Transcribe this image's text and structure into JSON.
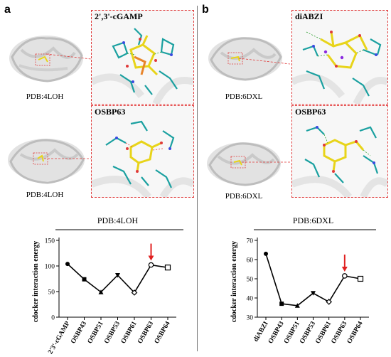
{
  "panels": {
    "a": {
      "letter": "a",
      "structures": [
        {
          "pdb_label": "PDB:4LOH",
          "inset_title": "2',3'-cGAMP"
        },
        {
          "pdb_label": "PDB:4LOH",
          "inset_title": "OSBP63"
        }
      ],
      "chart_title": "PDB:4LOH"
    },
    "b": {
      "letter": "b",
      "structures": [
        {
          "pdb_label": "PDB:6DXL",
          "inset_title": "diABZI"
        },
        {
          "pdb_label": "PDB:6DXL",
          "inset_title": "OSBP63"
        }
      ],
      "chart_title": "PDB:6DXL"
    }
  },
  "colors": {
    "inset_border": "#e03a3a",
    "arrow": "#e02020",
    "line": "#000000",
    "ligand": "#e8d41a",
    "residue": "#1aa0a0"
  },
  "chart_data": [
    {
      "type": "line",
      "title": "PDB:4LOH",
      "ylabel": "cdocker interaction energy",
      "categories": [
        "2'3'-cGAMP",
        "OSBP43",
        "OSBP51",
        "OSBP53",
        "OSBP61",
        "OSBP63",
        "OSBP64"
      ],
      "values": [
        104,
        74,
        49,
        82,
        48,
        102,
        97
      ],
      "markers": [
        "circle",
        "square",
        "triangle",
        "triangle-down",
        "diamond",
        "circle-open",
        "square-open"
      ],
      "yticks": [
        0,
        50,
        100,
        150
      ],
      "ylim": [
        0,
        150
      ],
      "arrow_at": "OSBP63"
    },
    {
      "type": "line",
      "title": "PDB:6DXL",
      "ylabel": "cdocker interaction energy",
      "categories": [
        "diABZI",
        "OSBP43",
        "OSBP51",
        "OSBP53",
        "OSBP61",
        "OSBP63",
        "OSBP64"
      ],
      "values": [
        63,
        37,
        36,
        42.5,
        38,
        51.5,
        50
      ],
      "markers": [
        "circle",
        "square",
        "triangle",
        "triangle-down",
        "diamond",
        "circle-open",
        "square-open"
      ],
      "yticks": [
        30,
        40,
        50,
        60,
        70
      ],
      "ylim": [
        30,
        70
      ],
      "arrow_at": "OSBP63"
    }
  ]
}
